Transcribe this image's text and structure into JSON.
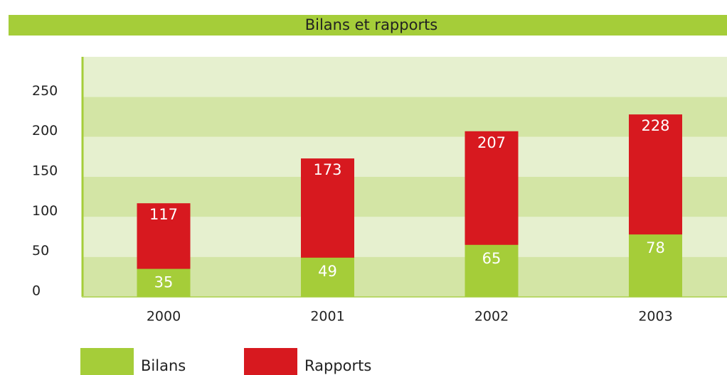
{
  "chart_data": {
    "type": "bar",
    "title": "Bilans et rapports",
    "categories": [
      "2000",
      "2001",
      "2002",
      "2003"
    ],
    "series": [
      {
        "name": "Rapports",
        "color": "#d7191f",
        "values": [
          117,
          173,
          207,
          228
        ]
      },
      {
        "name": "Bilans",
        "color": "#a5cd39",
        "values": [
          35,
          49,
          65,
          78
        ]
      }
    ],
    "ylim": [
      0,
      300
    ],
    "yticks": [
      0,
      50,
      100,
      150,
      200,
      250
    ],
    "grid": true
  }
}
